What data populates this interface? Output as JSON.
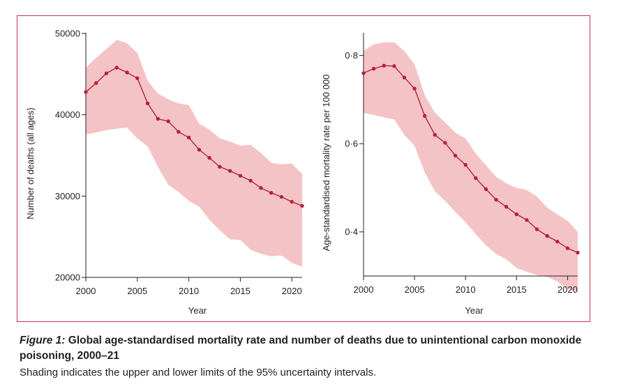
{
  "caption": {
    "figure_label": "Figure 1:",
    "title": "Global age-standardised mortality rate and number of deaths due to unintentional carbon monoxide poisoning, 2000–21",
    "note": "Shading indicates the upper and lower limits of the 95% uncertainty intervals."
  },
  "colors": {
    "line": "#b5203f",
    "band": "#f4c3c5",
    "frame": "#c8325a",
    "axis": "#231f20"
  },
  "chart_data": [
    {
      "type": "line",
      "xlabel": "Year",
      "ylabel": "Number of deaths (all ages)",
      "xlim": [
        2000,
        2021
      ],
      "ylim": [
        20000,
        50000
      ],
      "xticks": [
        2000,
        2005,
        2010,
        2015,
        2020
      ],
      "xtick_labels": [
        "2000",
        "2005",
        "2010",
        "2015",
        "2020"
      ],
      "yticks": [
        20000,
        30000,
        40000,
        50000
      ],
      "ytick_labels": [
        "20000",
        "30000",
        "40000",
        "50000"
      ],
      "x": [
        2000,
        2001,
        2002,
        2003,
        2004,
        2005,
        2006,
        2007,
        2008,
        2009,
        2010,
        2011,
        2012,
        2013,
        2014,
        2015,
        2016,
        2017,
        2018,
        2019,
        2020,
        2021
      ],
      "values": [
        42800,
        43900,
        45100,
        45800,
        45200,
        44500,
        41400,
        39500,
        39200,
        37900,
        37200,
        35700,
        34700,
        33600,
        33100,
        32500,
        31900,
        31000,
        30400,
        29900,
        29300,
        28800
      ],
      "upper": [
        45800,
        47000,
        48100,
        49200,
        48800,
        47600,
        44200,
        42600,
        41900,
        41400,
        41200,
        38900,
        38200,
        37100,
        36700,
        36200,
        36300,
        35300,
        34100,
        33900,
        34000,
        32700
      ],
      "lower": [
        37600,
        37800,
        38100,
        38300,
        38400,
        37100,
        36100,
        33600,
        31400,
        30500,
        29400,
        28700,
        27100,
        25800,
        24700,
        24600,
        23400,
        22900,
        22600,
        22700,
        21800,
        21300
      ]
    },
    {
      "type": "line",
      "xlabel": "Year",
      "ylabel": "Age-standardised mortality rate per 100 000",
      "xlim": [
        2000,
        2021
      ],
      "ylim": [
        0.3,
        0.85
      ],
      "xticks": [
        2000,
        2005,
        2010,
        2015,
        2020
      ],
      "xtick_labels": [
        "2000",
        "2005",
        "2010",
        "2015",
        "2020"
      ],
      "yticks": [
        0.4,
        0.6,
        0.8
      ],
      "ytick_labels": [
        "0·4",
        "0·6",
        "0·8"
      ],
      "x": [
        2000,
        2001,
        2002,
        2003,
        2004,
        2005,
        2006,
        2007,
        2008,
        2009,
        2010,
        2011,
        2012,
        2013,
        2014,
        2015,
        2016,
        2017,
        2018,
        2019,
        2020,
        2021
      ],
      "values": [
        0.76,
        0.77,
        0.777,
        0.776,
        0.75,
        0.725,
        0.663,
        0.62,
        0.602,
        0.573,
        0.552,
        0.522,
        0.497,
        0.473,
        0.457,
        0.44,
        0.427,
        0.406,
        0.391,
        0.378,
        0.363,
        0.353
      ],
      "upper": [
        0.81,
        0.825,
        0.83,
        0.83,
        0.81,
        0.78,
        0.71,
        0.67,
        0.648,
        0.625,
        0.612,
        0.578,
        0.551,
        0.525,
        0.51,
        0.5,
        0.495,
        0.48,
        0.455,
        0.44,
        0.425,
        0.4
      ],
      "lower": [
        0.67,
        0.665,
        0.66,
        0.655,
        0.62,
        0.595,
        0.535,
        0.492,
        0.47,
        0.445,
        0.422,
        0.395,
        0.37,
        0.35,
        0.338,
        0.318,
        0.31,
        0.302,
        0.298,
        0.288,
        0.27,
        0.265
      ]
    }
  ]
}
